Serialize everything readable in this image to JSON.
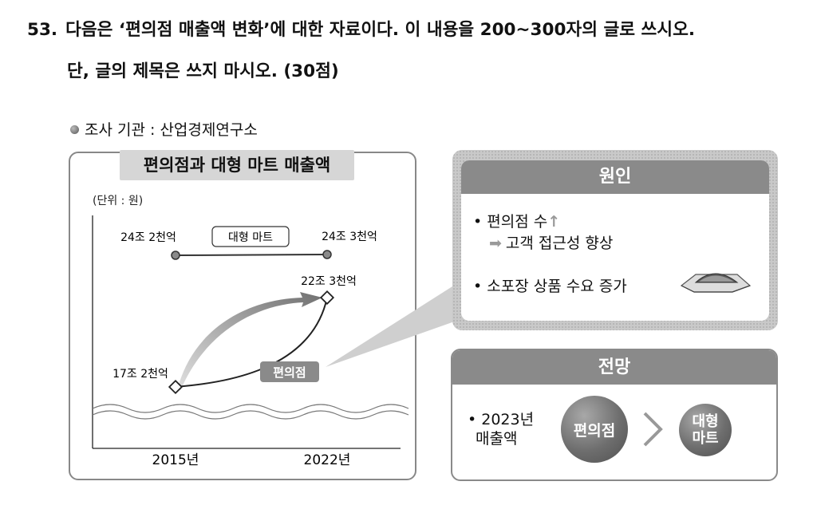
{
  "question": {
    "number": "53.",
    "line1": "다음은 ‘편의점 매출액 변화’에 대한 자료이다. 이 내용을 200~300자의 글로 쓰시오.",
    "line2": "단, 글의 제목은 쓰지 마시오. (30점)"
  },
  "source": "조사 기관 : 산업경제연구소",
  "chart_data": {
    "type": "line",
    "title": "편의점과 대형 마트 매출액",
    "unit": "(단위 : 원)",
    "categories": [
      "2015년",
      "2022년"
    ],
    "series": [
      {
        "name": "대형 마트",
        "values": [
          24.2,
          24.3
        ],
        "labels": [
          "24조 2천억",
          "24조 3천억"
        ]
      },
      {
        "name": "편의점",
        "values": [
          17.2,
          22.3
        ],
        "labels": [
          "17조 2천억",
          "22조 3천억"
        ]
      }
    ],
    "value_unit": "조 원",
    "grid": false
  },
  "cause": {
    "title": "원인",
    "item1_text": "편의점 수",
    "item1_arrow": "↑",
    "item1_sub": "고객 접근성 향상",
    "item2_text": "소포장 상품 수요 증가"
  },
  "outlook": {
    "title": "전망",
    "label_line1": "• 2023년",
    "label_line2": "매출액",
    "ball_big": "편의점",
    "ball_small_line1": "대형",
    "ball_small_line2": "마트"
  }
}
